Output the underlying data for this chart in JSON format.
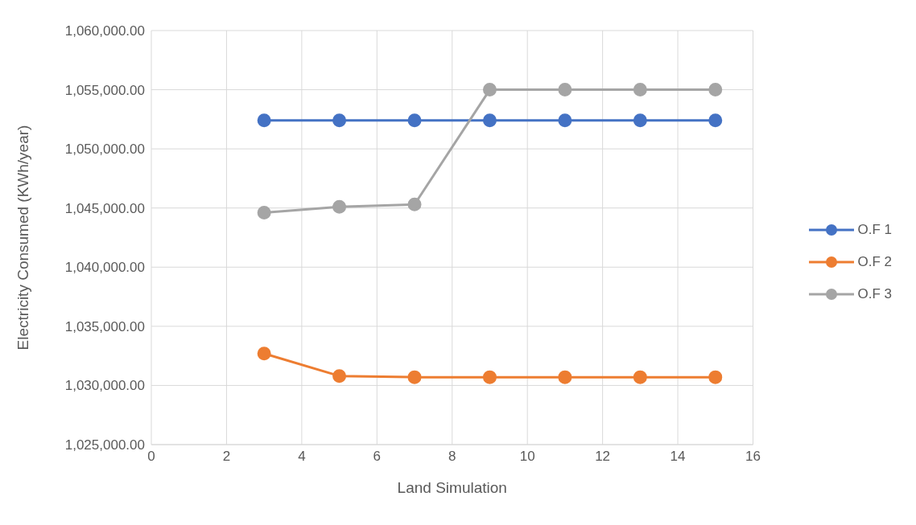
{
  "chart_data": {
    "type": "line",
    "xlabel": "Land Simulation",
    "ylabel": "Electricity Consumed  (KWh/year)",
    "x": [
      3,
      5,
      7,
      9,
      11,
      13,
      15
    ],
    "series": [
      {
        "name": "O.F 1",
        "color": "#4472c4",
        "values": [
          1052400,
          1052400,
          1052400,
          1052400,
          1052400,
          1052400,
          1052400
        ]
      },
      {
        "name": "O.F 2",
        "color": "#ed7d31",
        "values": [
          1032700,
          1030800,
          1030700,
          1030700,
          1030700,
          1030700,
          1030700
        ]
      },
      {
        "name": "O.F 3",
        "color": "#a5a5a5",
        "values": [
          1044600,
          1045100,
          1045300,
          1055000,
          1055000,
          1055000,
          1055000
        ]
      }
    ],
    "xlim": [
      0,
      16
    ],
    "xticks": [
      0,
      2,
      4,
      6,
      8,
      10,
      12,
      14,
      16
    ],
    "ylim": [
      1025000,
      1060000
    ],
    "yticks": [
      {
        "value": 1025000,
        "label": "1,025,000.00"
      },
      {
        "value": 1030000,
        "label": "1,030,000.00"
      },
      {
        "value": 1035000,
        "label": "1,035,000.00"
      },
      {
        "value": 1040000,
        "label": "1,040,000.00"
      },
      {
        "value": 1045000,
        "label": "1,045,000.00"
      },
      {
        "value": 1050000,
        "label": "1,050,000.00"
      },
      {
        "value": 1055000,
        "label": "1,055,000.00"
      },
      {
        "value": 1060000,
        "label": "1,060,000.00"
      }
    ],
    "grid": true,
    "legend": "right",
    "marker": "circle",
    "line_style": "solid"
  }
}
